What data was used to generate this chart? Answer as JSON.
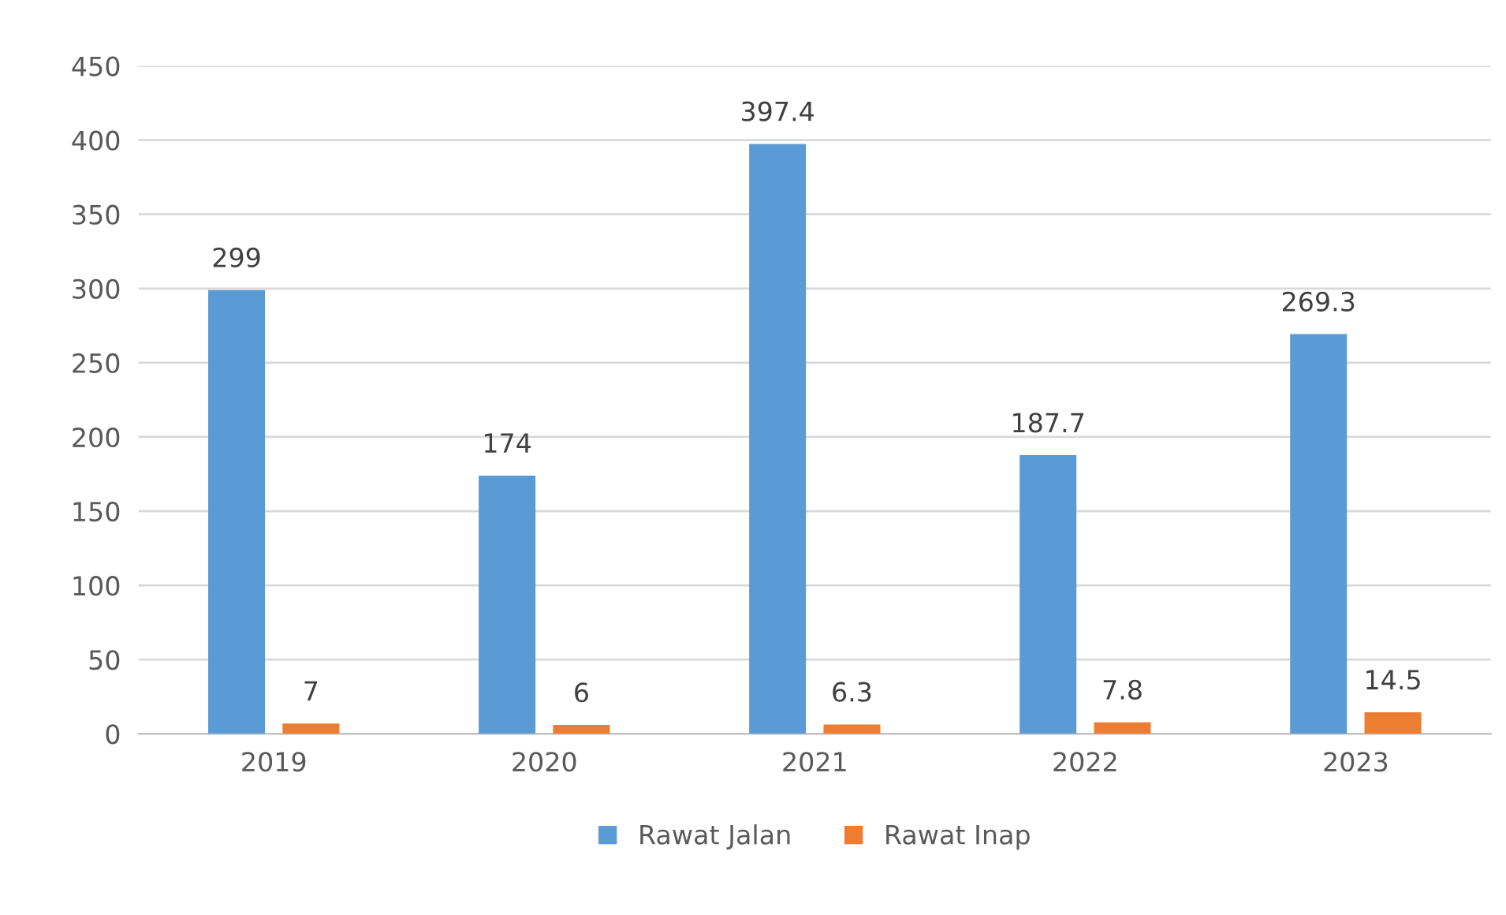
{
  "chart_data": {
    "type": "bar",
    "categories": [
      "2019",
      "2020",
      "2021",
      "2022",
      "2023"
    ],
    "series": [
      {
        "name": "Rawat Jalan",
        "color": "#5b9bd5",
        "values": [
          299,
          174,
          397.4,
          187.7,
          269.3
        ]
      },
      {
        "name": "Rawat Inap",
        "color": "#ed7d31",
        "values": [
          7,
          6,
          6.3,
          7.8,
          14.5
        ]
      }
    ],
    "ylim": [
      0,
      450
    ],
    "yticks": [
      0,
      50,
      100,
      150,
      200,
      250,
      300,
      350,
      400,
      450
    ],
    "grid": "y",
    "legend": "bottom",
    "data_labels": true
  }
}
